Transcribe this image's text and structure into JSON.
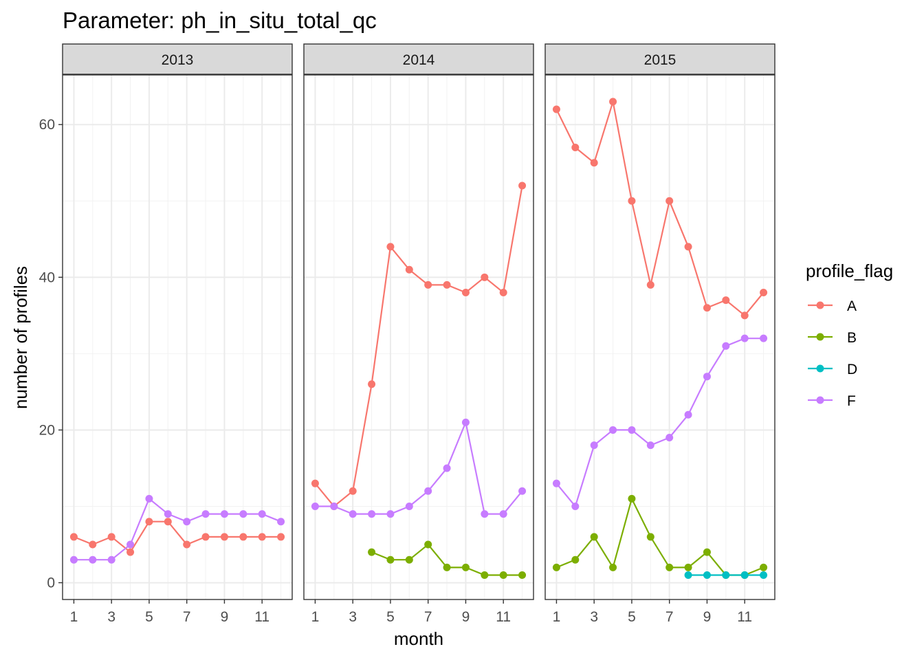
{
  "chart_data": {
    "type": "line",
    "title": "Parameter:  ph_in_situ_total_qc",
    "xlabel": "month",
    "ylabel": "number of profiles",
    "xlim": [
      0.4,
      12.6
    ],
    "ylim": [
      -2.2,
      66.5
    ],
    "x_ticks": [
      1,
      3,
      5,
      7,
      9,
      11
    ],
    "x_tick_labels": [
      "1",
      "3",
      "5",
      "7",
      "9",
      "11"
    ],
    "y_ticks": [
      0,
      20,
      40,
      60
    ],
    "y_tick_labels": [
      "0",
      "20",
      "40",
      "60"
    ],
    "grid": true,
    "legend": {
      "title": "profile_flag",
      "position": "right",
      "entries": [
        {
          "name": "A",
          "color": "#F8766D"
        },
        {
          "name": "B",
          "color": "#7CAE00"
        },
        {
          "name": "D",
          "color": "#00BFC4"
        },
        {
          "name": "F",
          "color": "#C77CFF"
        }
      ]
    },
    "facets": [
      {
        "label": "2013",
        "series": [
          {
            "name": "A",
            "color": "#F8766D",
            "x": [
              1,
              2,
              3,
              4,
              5,
              6,
              7,
              8,
              9,
              10,
              11,
              12
            ],
            "y": [
              6,
              5,
              6,
              4,
              8,
              8,
              5,
              6,
              6,
              6,
              6,
              6
            ]
          },
          {
            "name": "F",
            "color": "#C77CFF",
            "x": [
              1,
              2,
              3,
              4,
              5,
              6,
              7,
              8,
              9,
              10,
              11,
              12
            ],
            "y": [
              3,
              3,
              3,
              5,
              11,
              9,
              8,
              9,
              9,
              9,
              9,
              8
            ]
          }
        ]
      },
      {
        "label": "2014",
        "series": [
          {
            "name": "A",
            "color": "#F8766D",
            "x": [
              1,
              2,
              3,
              4,
              5,
              6,
              7,
              8,
              9,
              10,
              11,
              12
            ],
            "y": [
              13,
              10,
              12,
              26,
              44,
              41,
              39,
              39,
              38,
              40,
              38,
              52
            ]
          },
          {
            "name": "B",
            "color": "#7CAE00",
            "x": [
              4,
              5,
              6,
              7,
              8,
              9,
              10,
              11,
              12
            ],
            "y": [
              4,
              3,
              3,
              5,
              2,
              2,
              1,
              1,
              1
            ]
          },
          {
            "name": "F",
            "color": "#C77CFF",
            "x": [
              1,
              2,
              3,
              4,
              5,
              6,
              7,
              8,
              9,
              10,
              11,
              12
            ],
            "y": [
              10,
              10,
              9,
              9,
              9,
              10,
              12,
              15,
              21,
              9,
              9,
              12
            ]
          }
        ]
      },
      {
        "label": "2015",
        "series": [
          {
            "name": "A",
            "color": "#F8766D",
            "x": [
              1,
              2,
              3,
              4,
              5,
              6,
              7,
              8,
              9,
              10,
              11,
              12
            ],
            "y": [
              62,
              57,
              55,
              63,
              50,
              39,
              50,
              44,
              36,
              37,
              35,
              38
            ]
          },
          {
            "name": "B",
            "color": "#7CAE00",
            "x": [
              1,
              2,
              3,
              4,
              5,
              6,
              7,
              8,
              9,
              10,
              11,
              12
            ],
            "y": [
              2,
              3,
              6,
              2,
              11,
              6,
              2,
              2,
              4,
              1,
              1,
              2
            ]
          },
          {
            "name": "D",
            "color": "#00BFC4",
            "x": [
              8,
              9,
              10,
              11,
              12
            ],
            "y": [
              1,
              1,
              1,
              1,
              1
            ]
          },
          {
            "name": "F",
            "color": "#C77CFF",
            "x": [
              1,
              2,
              3,
              4,
              5,
              6,
              7,
              8,
              9,
              10,
              11,
              12
            ],
            "y": [
              13,
              10,
              18,
              20,
              20,
              18,
              19,
              22,
              27,
              31,
              32,
              32
            ]
          }
        ]
      }
    ]
  }
}
